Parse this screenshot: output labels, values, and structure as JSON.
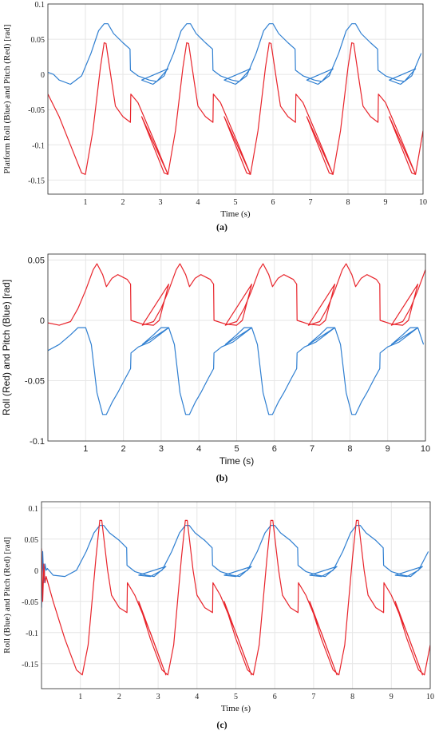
{
  "chart_data": [
    {
      "type": "line",
      "panel_label": "(a)",
      "xlabel": "Time (s)",
      "ylabel": "Platform Roll (Blue) and Pitch (Red) [rad]",
      "xlim": [
        0,
        10
      ],
      "ylim": [
        -0.17,
        0.1
      ],
      "xticks": [
        "1",
        "2",
        "3",
        "4",
        "5",
        "6",
        "7",
        "8",
        "9",
        "10"
      ],
      "yticks": [
        "0.1",
        "0.05",
        "0",
        "-0.05",
        "-0.1",
        "-0.15"
      ],
      "ytick_values": [
        0.1,
        0.05,
        0,
        -0.05,
        -0.1,
        -0.15
      ],
      "grid": true,
      "period": 2.2,
      "series": [
        {
          "color": "#2f7fd1",
          "x": [
            0,
            0.3,
            0.6,
            0.9,
            1.15,
            1.35,
            1.5,
            1.6,
            1.75,
            2.0,
            2.19,
            2.2,
            2.4,
            2.7,
            2.9,
            3.2
          ],
          "y": [
            0.003,
            -0.008,
            -0.014,
            -0.002,
            0.03,
            0.062,
            0.072,
            0.072,
            0.058,
            0.045,
            0.036,
            0.006,
            -0.002,
            -0.008,
            -0.01,
            0.008
          ],
          "start_x": [
            0,
            0.15
          ],
          "start_y": [
            0.003,
            0.0
          ]
        },
        {
          "color": "#e8242b",
          "x": [
            0,
            0.3,
            0.6,
            0.9,
            1.0,
            1.2,
            1.4,
            1.5,
            1.55,
            1.7,
            1.8,
            2.0,
            2.2,
            2.21,
            2.4,
            2.8,
            3.2
          ],
          "y": [
            -0.028,
            -0.06,
            -0.1,
            -0.14,
            -0.142,
            -0.08,
            0.01,
            0.045,
            0.044,
            -0.01,
            -0.045,
            -0.06,
            -0.068,
            -0.028,
            -0.04,
            -0.09,
            -0.142
          ]
        }
      ]
    },
    {
      "type": "line",
      "panel_label": "(b)",
      "xlabel": "Time (s)",
      "ylabel": "Roll (Red) and Pitch (Blue) [rad]",
      "xlim": [
        0,
        10
      ],
      "ylim": [
        -0.1,
        0.055
      ],
      "xticks": [
        "1",
        "2",
        "3",
        "4",
        "5",
        "6",
        "7",
        "8",
        "9",
        "10"
      ],
      "yticks": [
        "0.05",
        "0",
        "-0.05",
        "-0.1"
      ],
      "ytick_values": [
        0.05,
        0,
        -0.05,
        -0.1
      ],
      "grid": true,
      "period": 2.2,
      "series": [
        {
          "color": "#e8242b",
          "x": [
            0,
            0.3,
            0.6,
            0.8,
            1.0,
            1.2,
            1.3,
            1.45,
            1.55,
            1.7,
            1.85,
            2.1,
            2.19,
            2.2,
            2.5,
            2.8,
            2.95,
            3.2
          ],
          "y": [
            -0.002,
            -0.004,
            -0.001,
            0.01,
            0.025,
            0.042,
            0.047,
            0.038,
            0.028,
            0.035,
            0.038,
            0.034,
            0.03,
            0.0,
            -0.003,
            -0.004,
            0.0,
            0.03
          ]
        },
        {
          "color": "#2f7fd1",
          "x": [
            0,
            0.3,
            0.6,
            0.8,
            1.0,
            1.15,
            1.3,
            1.45,
            1.55,
            1.7,
            1.85,
            2.05,
            2.19,
            2.2,
            2.4,
            2.7,
            3.2
          ],
          "y": [
            -0.025,
            -0.02,
            -0.012,
            -0.006,
            -0.006,
            -0.02,
            -0.06,
            -0.078,
            -0.078,
            -0.068,
            -0.06,
            -0.048,
            -0.04,
            -0.027,
            -0.022,
            -0.018,
            -0.006
          ]
        }
      ]
    },
    {
      "type": "line",
      "panel_label": "(c)",
      "xlabel": "Time (s)",
      "ylabel": "Roll (Blue) and Pitch (Red) [rad]",
      "xlim": [
        0,
        10
      ],
      "ylim": [
        -0.19,
        0.11
      ],
      "xticks": [
        "1",
        "2",
        "3",
        "4",
        "5",
        "6",
        "7",
        "8",
        "9",
        "10"
      ],
      "yticks": [
        "0.1",
        "0.05",
        "0",
        "-0.05",
        "-0.1",
        "-0.15"
      ],
      "ytick_values": [
        0.1,
        0.05,
        0,
        -0.05,
        -0.1,
        -0.15
      ],
      "grid": true,
      "period": 2.2,
      "series": [
        {
          "color": "#2f7fd1",
          "x": [
            0,
            0.3,
            0.6,
            0.9,
            1.15,
            1.35,
            1.5,
            1.6,
            1.75,
            2.0,
            2.19,
            2.2,
            2.4,
            2.7,
            2.9,
            3.2
          ],
          "y": [
            0.003,
            -0.008,
            -0.01,
            0.0,
            0.03,
            0.06,
            0.072,
            0.072,
            0.06,
            0.048,
            0.036,
            0.008,
            -0.002,
            -0.008,
            -0.01,
            0.006
          ],
          "start_x": [
            0,
            0.03,
            0.06,
            0.09,
            0.12,
            0.15
          ],
          "start_y": [
            -0.06,
            0.03,
            -0.02,
            0.01,
            0.0,
            0.003
          ]
        },
        {
          "color": "#e8242b",
          "x": [
            0,
            0.3,
            0.6,
            0.9,
            1.05,
            1.2,
            1.4,
            1.5,
            1.55,
            1.7,
            1.8,
            2.0,
            2.2,
            2.21,
            2.4,
            2.8,
            3.2
          ],
          "y": [
            -0.01,
            -0.05,
            -0.11,
            -0.16,
            -0.168,
            -0.12,
            0.02,
            0.08,
            0.08,
            0.0,
            -0.04,
            -0.06,
            -0.068,
            -0.02,
            -0.04,
            -0.1,
            -0.168
          ],
          "start_x": [
            0,
            0.03,
            0.06,
            0.09,
            0.12
          ],
          "start_y": [
            0.035,
            -0.05,
            0.01,
            -0.02,
            -0.01
          ]
        }
      ]
    }
  ]
}
